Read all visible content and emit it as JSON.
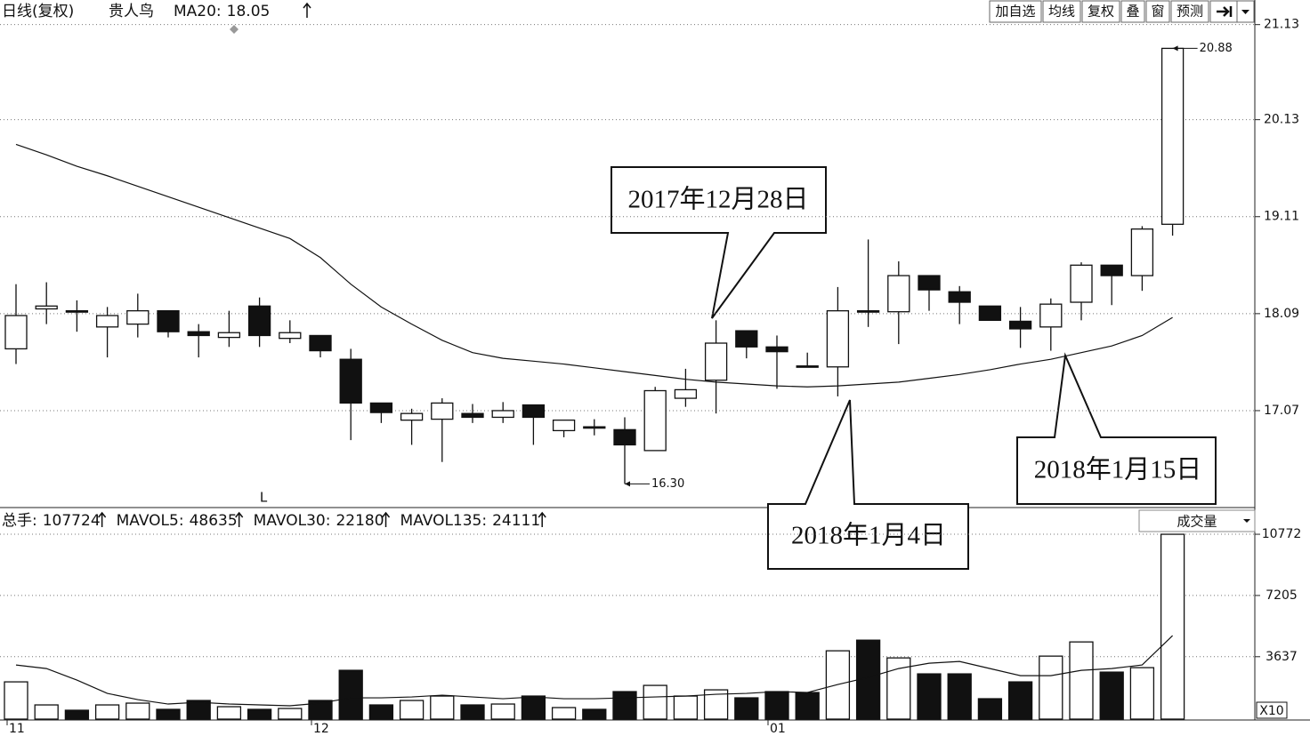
{
  "chart_data": {
    "type": "candlestick",
    "period": "日线(复权)",
    "title": "贵人鸟",
    "toolbar": [
      "加自选",
      "均线",
      "复权",
      "叠",
      "窗",
      "预测"
    ],
    "categories": [
      "11",
      null,
      null,
      null,
      null,
      null,
      null,
      null,
      null,
      null,
      "12",
      null,
      null,
      null,
      null,
      null,
      null,
      null,
      null,
      null,
      null,
      null,
      null,
      null,
      null,
      "01",
      null,
      null,
      null,
      null,
      null,
      null,
      null,
      null,
      null,
      null,
      null,
      null,
      null
    ],
    "open": [
      17.72,
      18.14,
      18.12,
      17.95,
      17.98,
      18.12,
      17.9,
      17.84,
      18.17,
      17.83,
      17.86,
      17.61,
      17.15,
      16.97,
      16.98,
      17.04,
      17.0,
      17.13,
      16.86,
      16.9,
      16.87,
      16.65,
      17.2,
      17.39,
      17.91,
      17.74,
      17.54,
      17.53,
      18.12,
      18.11,
      18.49,
      18.32,
      18.17,
      18.01,
      17.95,
      18.21,
      18.6,
      18.49,
      19.03
    ],
    "high": [
      18.4,
      18.42,
      18.23,
      18.16,
      18.3,
      18.12,
      17.98,
      18.12,
      18.26,
      18.02,
      17.86,
      17.72,
      17.15,
      17.09,
      17.2,
      17.14,
      17.16,
      17.13,
      16.97,
      16.98,
      17.0,
      17.32,
      17.51,
      18.02,
      17.91,
      17.86,
      17.68,
      18.37,
      18.87,
      18.64,
      18.49,
      18.38,
      18.17,
      18.16,
      18.25,
      18.63,
      18.6,
      19.01,
      20.88
    ],
    "low": [
      17.56,
      17.98,
      17.9,
      17.63,
      17.84,
      17.84,
      17.63,
      17.74,
      17.74,
      17.78,
      17.63,
      16.76,
      16.94,
      16.71,
      16.53,
      16.94,
      16.94,
      16.71,
      16.79,
      16.81,
      16.3,
      16.65,
      17.11,
      17.04,
      17.62,
      17.3,
      17.53,
      17.22,
      17.95,
      17.77,
      18.12,
      17.98,
      18.02,
      17.73,
      17.7,
      18.02,
      18.18,
      18.33,
      18.91
    ],
    "close": [
      18.07,
      18.17,
      18.12,
      18.07,
      18.12,
      17.9,
      17.86,
      17.89,
      17.86,
      17.89,
      17.7,
      17.15,
      17.05,
      17.04,
      17.15,
      17.0,
      17.07,
      17.0,
      16.97,
      16.9,
      16.71,
      17.28,
      17.29,
      17.78,
      17.74,
      17.69,
      17.54,
      18.12,
      18.12,
      18.49,
      18.34,
      18.21,
      18.02,
      17.93,
      18.19,
      18.6,
      18.49,
      18.98,
      20.88
    ],
    "ma": {
      "name": "MA20:",
      "color": "#111",
      "values": [
        19.87,
        19.76,
        19.64,
        19.54,
        19.43,
        19.32,
        19.21,
        19.1,
        18.99,
        18.88,
        18.68,
        18.4,
        18.16,
        17.98,
        17.81,
        17.68,
        17.62,
        17.59,
        17.56,
        17.52,
        17.48,
        17.44,
        17.4,
        17.37,
        17.35,
        17.33,
        17.32,
        17.33,
        17.35,
        17.37,
        17.41,
        17.45,
        17.5,
        17.56,
        17.61,
        17.68,
        17.75,
        17.86,
        18.05
      ]
    },
    "marked_low": {
      "value": 16.3,
      "label": "16.30"
    },
    "marked_high": {
      "value": 20.88,
      "label": "20.88"
    },
    "cursor_label": "L",
    "ylim": [
      16.06,
      21.37
    ],
    "yticks": [
      17.07,
      18.09,
      19.11,
      20.13,
      21.13
    ],
    "grid": true,
    "volume": {
      "name": "成交量",
      "unit": "X10",
      "indicators": [
        {
          "name": "总手:",
          "value": 107724
        },
        {
          "name": "MAVOL5:",
          "value": 48635
        },
        {
          "name": "MAVOL30:",
          "value": 22180
        },
        {
          "name": "MAVOL135:",
          "value": 24111
        }
      ],
      "values": [
        2171,
        827,
        517,
        827,
        931,
        569,
        1086,
        724,
        569,
        620,
        1086,
        2844,
        827,
        1086,
        1344,
        827,
        879,
        1344,
        672,
        569,
        1603,
        1965,
        1344,
        1706,
        1241,
        1603,
        1551,
        3981,
        4601,
        3567,
        2637,
        2637,
        1189,
        2171,
        3671,
        4498,
        2740,
        2999,
        10772
      ],
      "mavol5": [
        3154,
        2947,
        2275,
        1499,
        1138,
        879,
        982,
        879,
        827,
        776,
        931,
        1241,
        1241,
        1293,
        1396,
        1293,
        1189,
        1293,
        1189,
        1189,
        1241,
        1293,
        1344,
        1448,
        1499,
        1603,
        1551,
        2016,
        2430,
        2947,
        3257,
        3361,
        2947,
        2533,
        2533,
        2844,
        2947,
        3154,
        4864
      ],
      "ylim": [
        0,
        10930
      ],
      "yticks": [
        3637,
        7205,
        10772
      ]
    },
    "callouts": [
      "2017年12月28日",
      "2018年1月4日",
      "2018年1月15日"
    ]
  }
}
